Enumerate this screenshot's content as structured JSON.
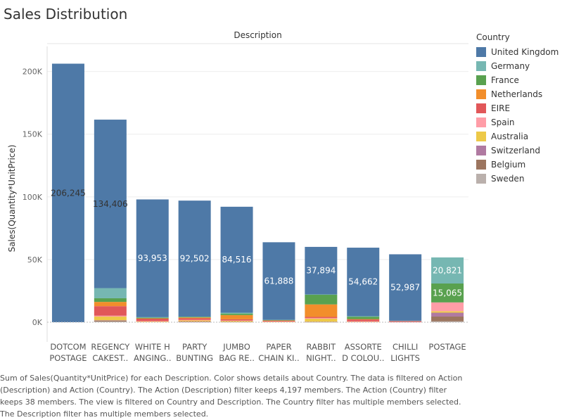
{
  "page": {
    "title": "Sales Distribution",
    "caption": "Sum of Sales(Quantity*UnitPrice) for each Description.  Color shows details about Country. The data is filtered on Action (Description) and Action (Country). The Action (Description) filter keeps 4,197 members. The Action (Country) filter keeps 38 members. The view is filtered on Country and Description. The Country filter has multiple members selected. The Description filter has multiple members selected."
  },
  "legend": {
    "title": "Country",
    "items": [
      {
        "label": "United Kingdom",
        "color": "#4e79a7"
      },
      {
        "label": "Germany",
        "color": "#76b7b2"
      },
      {
        "label": "France",
        "color": "#59a14f"
      },
      {
        "label": "Netherlands",
        "color": "#f28e2b"
      },
      {
        "label": "EIRE",
        "color": "#e15759"
      },
      {
        "label": "Spain",
        "color": "#ff9da7"
      },
      {
        "label": "Australia",
        "color": "#edc948"
      },
      {
        "label": "Switzerland",
        "color": "#b07aa1"
      },
      {
        "label": "Belgium",
        "color": "#9c755f"
      },
      {
        "label": "Sweden",
        "color": "#bab0ac"
      }
    ]
  },
  "chart_data": {
    "type": "bar",
    "stacked": true,
    "title": "",
    "column_header": "Description",
    "xlabel": "",
    "ylabel": "Sales(Quantity*UnitPrice)",
    "ylim": [
      0,
      220000
    ],
    "yticks": [
      0,
      50000,
      100000,
      150000,
      200000
    ],
    "ytick_labels": [
      "0K",
      "50K",
      "100K",
      "150K",
      "200K"
    ],
    "categories": [
      [
        "DOTCOM",
        "POSTAGE"
      ],
      [
        "REGENCY",
        "CAKEST.."
      ],
      [
        "WHITE H",
        "ANGING.."
      ],
      [
        "PARTY",
        "BUNTING"
      ],
      [
        "JUMBO",
        "BAG RE.."
      ],
      [
        "PAPER",
        "CHAIN KI.."
      ],
      [
        "RABBIT",
        "NIGHT.."
      ],
      [
        "ASSORTE",
        "D COLOU.."
      ],
      [
        "CHILLI",
        "LIGHTS"
      ],
      [
        "POSTAGE",
        ""
      ]
    ],
    "series": [
      {
        "name": "Sweden",
        "values": [
          0,
          500,
          0,
          0,
          0,
          0,
          0,
          0,
          0,
          700
        ]
      },
      {
        "name": "Belgium",
        "values": [
          0,
          600,
          0,
          300,
          300,
          0,
          200,
          0,
          0,
          3800
        ]
      },
      {
        "name": "Switzerland",
        "values": [
          0,
          400,
          0,
          300,
          0,
          0,
          200,
          0,
          0,
          3100
        ]
      },
      {
        "name": "Australia",
        "values": [
          0,
          3000,
          500,
          800,
          700,
          300,
          2400,
          300,
          0,
          1200
        ]
      },
      {
        "name": "Spain",
        "values": [
          0,
          700,
          400,
          500,
          300,
          300,
          600,
          400,
          200,
          7000
        ]
      },
      {
        "name": "EIRE",
        "values": [
          0,
          7600,
          2000,
          1200,
          1000,
          500,
          800,
          1500,
          800,
          0
        ]
      },
      {
        "name": "Netherlands",
        "values": [
          0,
          3400,
          200,
          700,
          3400,
          300,
          10000,
          300,
          0,
          0
        ]
      },
      {
        "name": "France",
        "values": [
          0,
          2900,
          500,
          500,
          1200,
          300,
          7700,
          1900,
          0,
          15065
        ]
      },
      {
        "name": "Germany",
        "values": [
          0,
          8100,
          400,
          200,
          700,
          200,
          300,
          400,
          200,
          20821
        ]
      },
      {
        "name": "United Kingdom",
        "values": [
          206245,
          134406,
          93953,
          92502,
          84516,
          61888,
          37894,
          54662,
          52987,
          0
        ]
      }
    ],
    "data_labels": [
      {
        "category_index": 0,
        "series": "United Kingdom",
        "text": "206,245",
        "color": "#333333"
      },
      {
        "category_index": 1,
        "series": "United Kingdom",
        "text": "134,406",
        "color": "#333333"
      },
      {
        "category_index": 2,
        "series": "United Kingdom",
        "text": "93,953",
        "color": "#ffffff"
      },
      {
        "category_index": 3,
        "series": "United Kingdom",
        "text": "92,502",
        "color": "#ffffff"
      },
      {
        "category_index": 4,
        "series": "United Kingdom",
        "text": "84,516",
        "color": "#ffffff"
      },
      {
        "category_index": 5,
        "series": "United Kingdom",
        "text": "61,888",
        "color": "#ffffff"
      },
      {
        "category_index": 6,
        "series": "United Kingdom",
        "text": "37,894",
        "color": "#ffffff"
      },
      {
        "category_index": 7,
        "series": "United Kingdom",
        "text": "54,662",
        "color": "#ffffff"
      },
      {
        "category_index": 8,
        "series": "United Kingdom",
        "text": "52,987",
        "color": "#ffffff"
      },
      {
        "category_index": 9,
        "series": "Germany",
        "text": "20,821",
        "color": "#ffffff"
      },
      {
        "category_index": 9,
        "series": "France",
        "text": "15,065",
        "color": "#ffffff"
      }
    ],
    "grid": true,
    "legend_position": "right"
  }
}
